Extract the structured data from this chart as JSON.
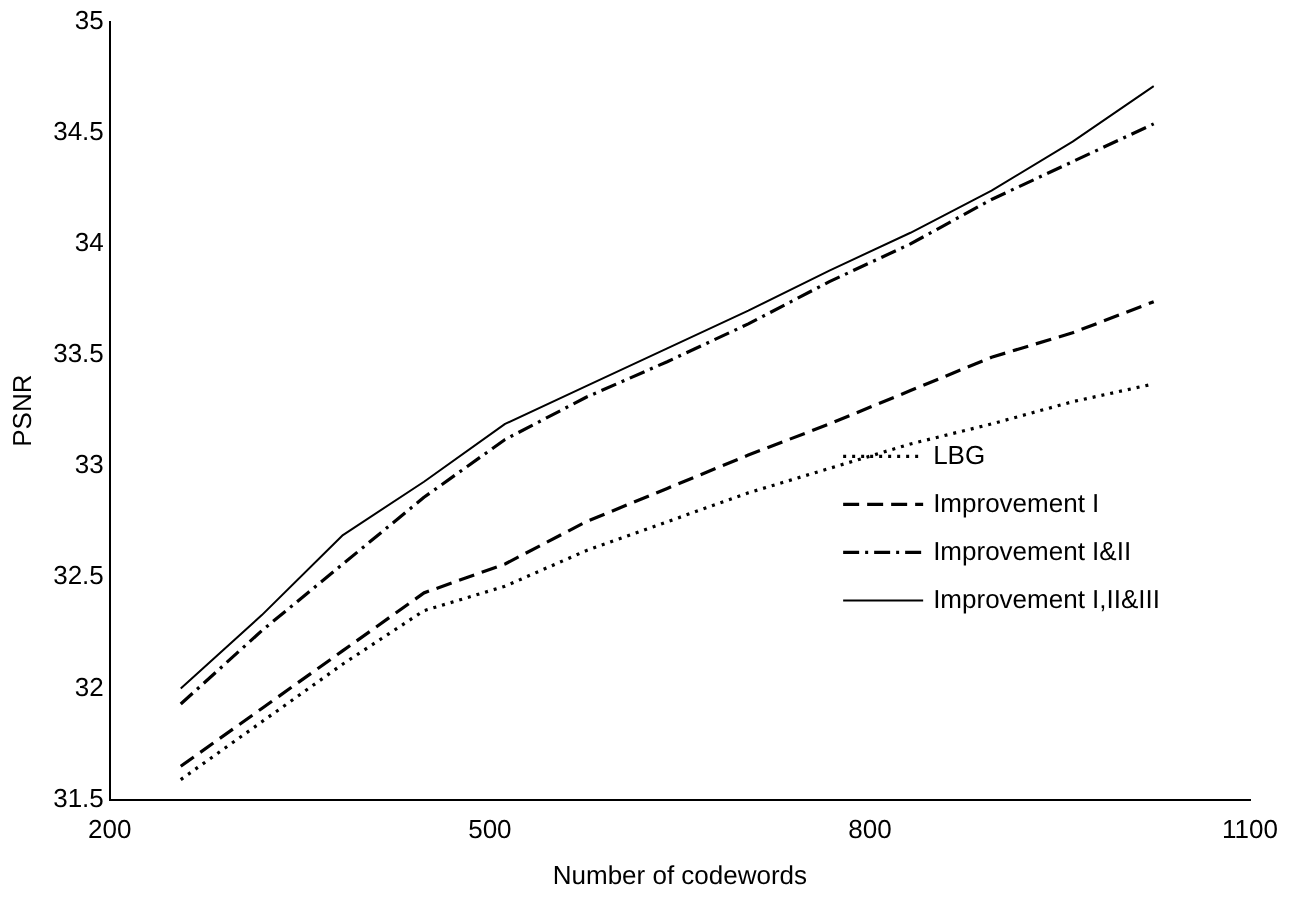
{
  "chart_data": {
    "type": "line",
    "xlabel": "Number of codewords",
    "ylabel": "PSNR",
    "x": [
      256,
      320,
      384,
      448,
      512,
      576,
      640,
      704,
      768,
      832,
      896,
      960,
      1024
    ],
    "xlim": [
      200,
      1100
    ],
    "xticks": [
      200,
      500,
      800,
      1100
    ],
    "ylim": [
      31.5,
      35
    ],
    "yticks": [
      31.5,
      32,
      32.5,
      33,
      33.5,
      34,
      34.5,
      35
    ],
    "grid": false,
    "legend": "right",
    "marker": "none",
    "series": [
      {
        "name": "LBG",
        "color": "#000000",
        "line_style": "dotted",
        "values": [
          31.59,
          31.85,
          32.11,
          32.35,
          32.46,
          32.62,
          32.75,
          32.88,
          32.99,
          33.1,
          33.19,
          33.29,
          33.37
        ]
      },
      {
        "name": "Improvement I",
        "color": "#000000",
        "line_style": "dashed",
        "values": [
          31.65,
          31.91,
          32.17,
          32.43,
          32.56,
          32.75,
          32.9,
          33.05,
          33.19,
          33.34,
          33.49,
          33.6,
          33.74
        ]
      },
      {
        "name": "Improvement I&II",
        "color": "#000000",
        "line_style": "dashdot",
        "values": [
          31.93,
          32.26,
          32.56,
          32.86,
          33.12,
          33.31,
          33.47,
          33.64,
          33.83,
          34.0,
          34.2,
          34.37,
          34.54
        ]
      },
      {
        "name": "Improvement I,II&III",
        "color": "#000000",
        "line_style": "solid",
        "values": [
          32.0,
          32.33,
          32.69,
          32.93,
          33.19,
          33.36,
          33.53,
          33.7,
          33.88,
          34.05,
          34.24,
          34.46,
          34.71
        ]
      }
    ]
  }
}
